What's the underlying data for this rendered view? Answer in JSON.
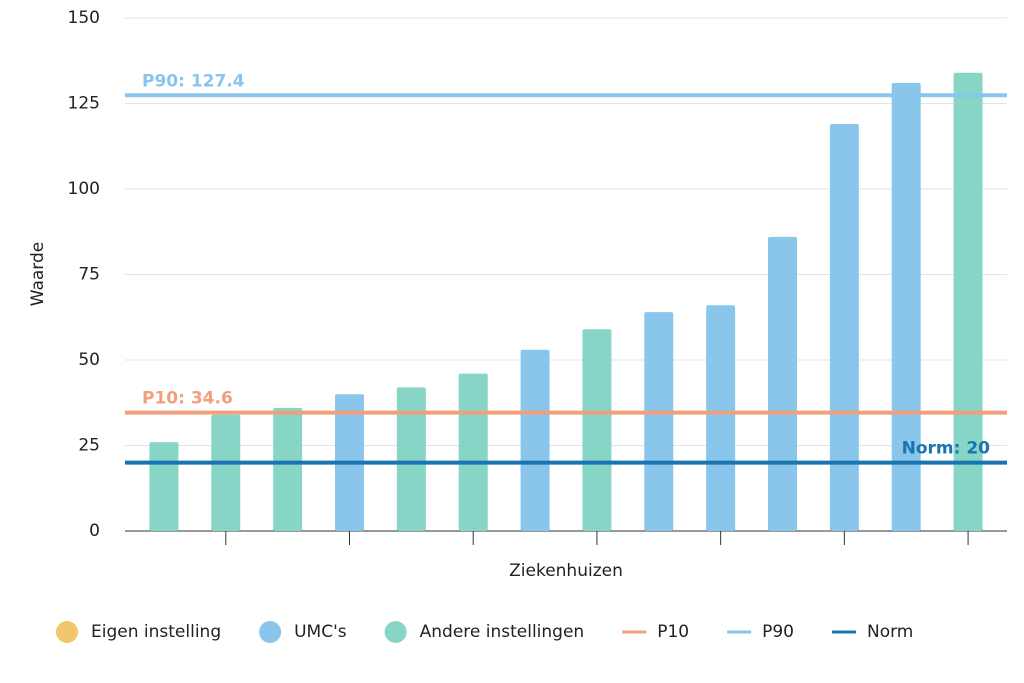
{
  "chart_data": {
    "type": "bar",
    "x_label": "Ziekenhuizen",
    "y_label": "Waarde",
    "categories": [
      null,
      null,
      null,
      null,
      null,
      null,
      null,
      null,
      null,
      null,
      null,
      null,
      null,
      null
    ],
    "series": [
      {
        "name": "Eigen instelling",
        "color": "#f2c66d",
        "values": [
          null,
          null,
          null,
          null,
          null,
          null,
          null,
          null,
          null,
          null,
          null,
          null,
          null,
          null
        ]
      },
      {
        "name": "UMC's",
        "color": "#8ac5ec",
        "values": [
          null,
          null,
          null,
          40,
          null,
          null,
          53,
          null,
          64,
          66,
          86,
          119,
          131,
          null
        ]
      },
      {
        "name": "Andere instellingen",
        "color": "#86d5c6",
        "values": [
          26,
          34,
          36,
          null,
          42,
          46,
          null,
          59,
          null,
          null,
          null,
          null,
          null,
          134
        ]
      }
    ],
    "reference_lines": [
      {
        "name": "P10",
        "value": 34.6,
        "label": "P10: 34.6",
        "color": "#f0a07c",
        "label_position": "left"
      },
      {
        "name": "P90",
        "value": 127.4,
        "label": "P90: 127.4",
        "color": "#8ac5ec",
        "label_position": "left"
      },
      {
        "name": "Norm",
        "value": 20,
        "label": "Norm: 20",
        "color": "#1a74b0",
        "label_position": "right"
      }
    ],
    "ylim": [
      0,
      150
    ],
    "yticks": [
      0,
      25,
      50,
      75,
      100,
      125,
      150
    ],
    "grid": true
  }
}
